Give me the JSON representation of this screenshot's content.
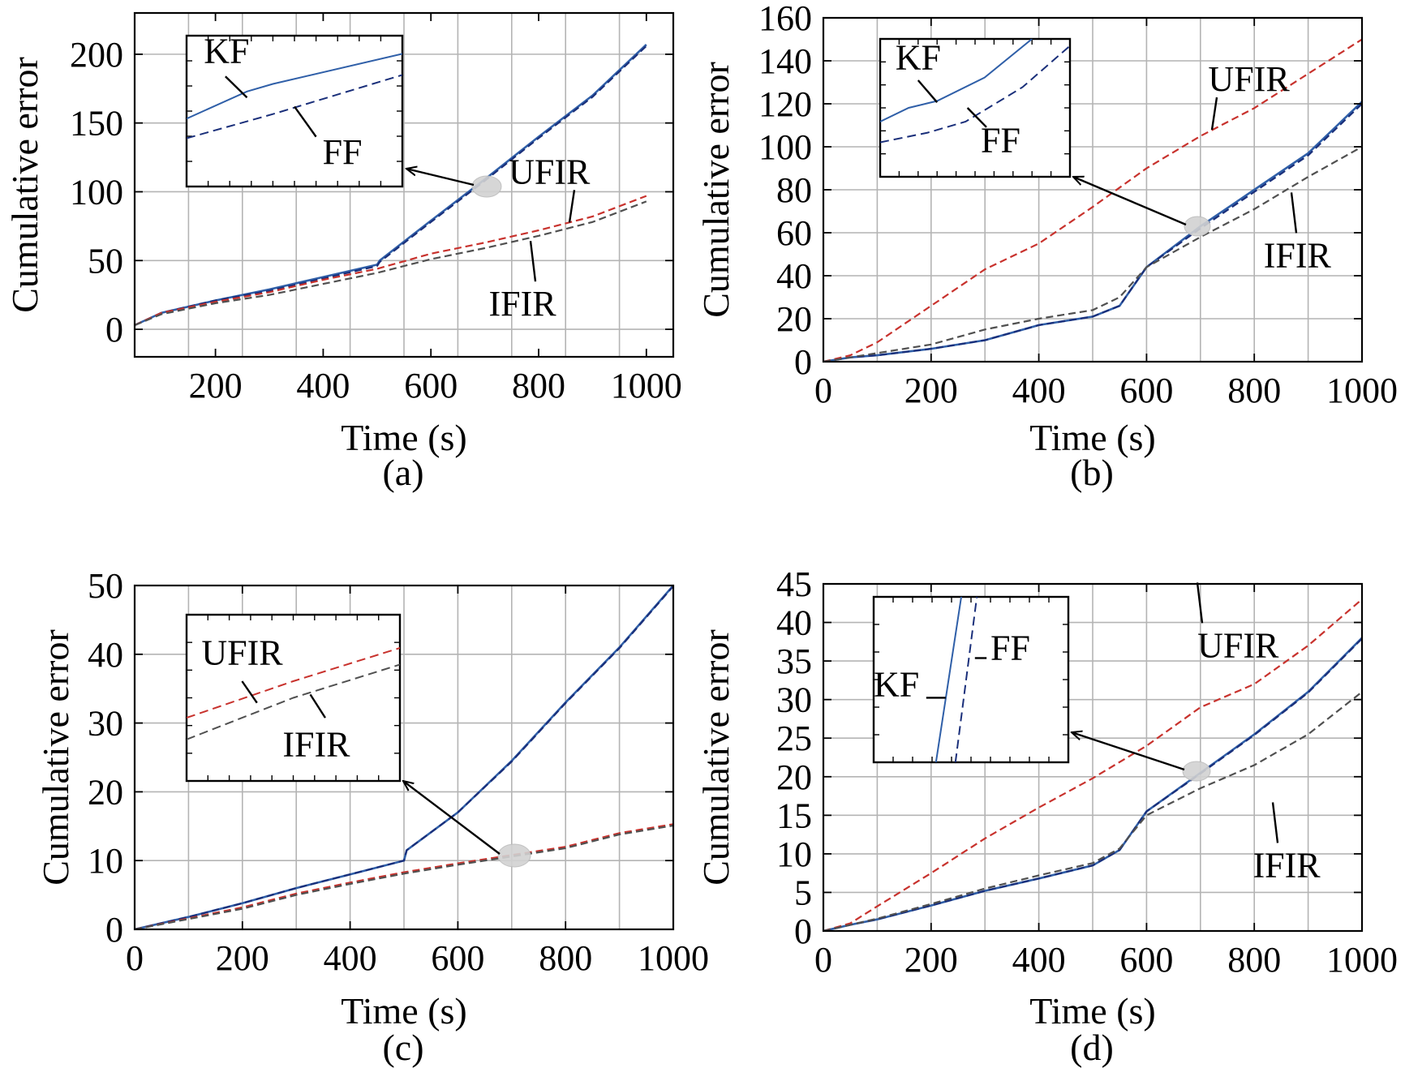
{
  "colors": {
    "KF": "#2f5fa8",
    "FF": "#1a2f7a",
    "UFIR": "#c8322d",
    "IFIR": "#505050",
    "grid": "#b4b4b4",
    "highlight": "#d2d2d2"
  },
  "chart_data": [
    {
      "type": "line",
      "panel_label": "(a)",
      "xlabel": "Time (s)",
      "ylabel": "Cumulative error",
      "xlim": [
        50,
        1050
      ],
      "ylim": [
        -20,
        230
      ],
      "xticks": [
        200,
        400,
        600,
        800,
        1000
      ],
      "yticks": [
        0,
        50,
        100,
        150,
        200
      ],
      "grid": true,
      "series": [
        {
          "key": "KF",
          "style": "solid",
          "x": [
            50,
            100,
            200,
            300,
            400,
            500,
            505,
            600,
            700,
            800,
            900,
            1000
          ],
          "y": [
            3,
            12,
            21,
            29,
            38,
            47,
            50,
            79,
            109,
            140,
            170,
            207
          ]
        },
        {
          "key": "FF",
          "style": "dash",
          "x": [
            50,
            100,
            200,
            300,
            400,
            500,
            505,
            600,
            700,
            800,
            900,
            1000
          ],
          "y": [
            3,
            12,
            21,
            28,
            37,
            46,
            49,
            78,
            108,
            139,
            169,
            206
          ]
        },
        {
          "key": "UFIR",
          "style": "dash",
          "x": [
            50,
            100,
            200,
            300,
            400,
            500,
            600,
            700,
            800,
            900,
            1000
          ],
          "y": [
            3,
            12,
            20,
            27,
            36,
            44,
            55,
            63,
            72,
            82,
            97
          ]
        },
        {
          "key": "IFIR",
          "style": "dash",
          "x": [
            50,
            100,
            200,
            300,
            400,
            500,
            600,
            700,
            800,
            900,
            1000
          ],
          "y": [
            3,
            11,
            19,
            25,
            33,
            41,
            51,
            59,
            68,
            78,
            93
          ]
        }
      ],
      "labels": [
        {
          "text": "UFIR",
          "x": 820,
          "y": 106
        },
        {
          "text": "IFIR",
          "x": 770,
          "y": 10
        }
      ],
      "inset": {
        "labels": [
          {
            "text": "KF"
          },
          {
            "text": "FF"
          }
        ]
      }
    },
    {
      "type": "line",
      "panel_label": "(b)",
      "xlabel": "Time (s)",
      "ylabel": "Cumulative error",
      "xlim": [
        0,
        1000
      ],
      "ylim": [
        0,
        160
      ],
      "xticks": [
        0,
        200,
        400,
        600,
        800,
        1000
      ],
      "yticks": [
        0,
        20,
        40,
        60,
        80,
        100,
        120,
        140,
        160
      ],
      "grid": true,
      "series": [
        {
          "key": "KF",
          "style": "solid",
          "x": [
            0,
            50,
            100,
            200,
            300,
            400,
            500,
            550,
            600,
            700,
            800,
            900,
            1000
          ],
          "y": [
            0,
            2,
            3,
            6,
            10,
            17,
            21,
            26,
            44,
            63,
            80,
            97,
            121
          ]
        },
        {
          "key": "FF",
          "style": "dash",
          "x": [
            0,
            50,
            100,
            200,
            300,
            400,
            500,
            550,
            600,
            700,
            800,
            900,
            1000
          ],
          "y": [
            0,
            2,
            3,
            6,
            10,
            17,
            21,
            26,
            44,
            62,
            79,
            96,
            120
          ]
        },
        {
          "key": "UFIR",
          "style": "dash",
          "x": [
            0,
            50,
            100,
            200,
            300,
            400,
            500,
            600,
            700,
            800,
            900,
            1000
          ],
          "y": [
            0,
            3,
            9,
            26,
            43,
            55,
            72,
            90,
            105,
            118,
            134,
            150
          ]
        },
        {
          "key": "IFIR",
          "style": "dash",
          "x": [
            0,
            50,
            100,
            200,
            300,
            400,
            500,
            550,
            600,
            700,
            800,
            900,
            1000
          ],
          "y": [
            0,
            2,
            4,
            8,
            15,
            20,
            24,
            30,
            44,
            58,
            71,
            86,
            100
          ]
        }
      ],
      "labels": [
        {
          "text": "UFIR",
          "x": 790,
          "y": 126
        },
        {
          "text": "IFIR",
          "x": 880,
          "y": 44
        }
      ],
      "inset": {
        "labels": [
          {
            "text": "KF"
          },
          {
            "text": "FF"
          }
        ]
      }
    },
    {
      "type": "line",
      "panel_label": "(c)",
      "xlabel": "Time (s)",
      "ylabel": "Cumulative error",
      "xlim": [
        0,
        1000
      ],
      "ylim": [
        0,
        50
      ],
      "xticks": [
        0,
        200,
        400,
        600,
        800,
        1000
      ],
      "yticks": [
        0,
        10,
        20,
        30,
        40,
        50
      ],
      "grid": true,
      "series": [
        {
          "key": "KF",
          "style": "solid",
          "x": [
            0,
            100,
            200,
            300,
            400,
            500,
            505,
            600,
            700,
            800,
            900,
            1000
          ],
          "y": [
            0,
            1.8,
            3.8,
            6,
            8,
            10,
            11.5,
            17,
            24.5,
            33,
            41,
            50
          ]
        },
        {
          "key": "FF",
          "style": "dash",
          "x": [
            0,
            100,
            200,
            300,
            400,
            500,
            505,
            600,
            700,
            800,
            900,
            1000
          ],
          "y": [
            0,
            1.8,
            3.8,
            6,
            8,
            10,
            11.5,
            17,
            24.4,
            32.9,
            40.9,
            49.9
          ]
        },
        {
          "key": "UFIR",
          "style": "dash",
          "x": [
            0,
            100,
            200,
            300,
            400,
            500,
            600,
            700,
            800,
            900,
            1000
          ],
          "y": [
            0,
            1.6,
            3.2,
            5.2,
            6.8,
            8.3,
            9.6,
            10.8,
            12,
            14,
            15.3
          ]
        },
        {
          "key": "IFIR",
          "style": "dash",
          "x": [
            0,
            100,
            200,
            300,
            400,
            500,
            600,
            700,
            800,
            900,
            1000
          ],
          "y": [
            0,
            1.5,
            3.0,
            5.0,
            6.6,
            8.1,
            9.4,
            10.6,
            11.8,
            13.8,
            15.1
          ]
        }
      ],
      "labels": [],
      "inset": {
        "labels": [
          {
            "text": "UFIR"
          },
          {
            "text": "IFIR"
          }
        ]
      }
    },
    {
      "type": "line",
      "panel_label": "(d)",
      "xlabel": "Time (s)",
      "ylabel": "Cumulative error",
      "xlim": [
        0,
        1000
      ],
      "ylim": [
        0,
        45
      ],
      "xticks": [
        0,
        200,
        400,
        600,
        800,
        1000
      ],
      "yticks": [
        0,
        5,
        10,
        15,
        20,
        25,
        30,
        35,
        40,
        45
      ],
      "grid": true,
      "series": [
        {
          "key": "KF",
          "style": "solid",
          "x": [
            0,
            50,
            100,
            200,
            300,
            400,
            500,
            550,
            600,
            700,
            800,
            900,
            1000
          ],
          "y": [
            0,
            0.8,
            1.5,
            3.3,
            5.2,
            6.8,
            8.5,
            10.5,
            15.5,
            20.5,
            25.5,
            31,
            38
          ]
        },
        {
          "key": "FF",
          "style": "dash",
          "x": [
            0,
            50,
            100,
            200,
            300,
            400,
            500,
            550,
            600,
            700,
            800,
            900,
            1000
          ],
          "y": [
            0,
            0.8,
            1.5,
            3.3,
            5.2,
            6.8,
            8.5,
            10.5,
            15.5,
            20.4,
            25.4,
            30.9,
            37.9
          ]
        },
        {
          "key": "UFIR",
          "style": "dash",
          "x": [
            0,
            50,
            100,
            200,
            300,
            400,
            500,
            600,
            700,
            800,
            900,
            1000
          ],
          "y": [
            0,
            1,
            3.2,
            7.5,
            12,
            16,
            19.8,
            24,
            29,
            32,
            37,
            43
          ]
        },
        {
          "key": "IFIR",
          "style": "dash",
          "x": [
            0,
            50,
            100,
            200,
            300,
            400,
            500,
            550,
            600,
            700,
            800,
            900,
            1000
          ],
          "y": [
            0,
            0.8,
            1.6,
            3.5,
            5.5,
            7.2,
            8.8,
            10.7,
            15.0,
            18.5,
            21.5,
            25.5,
            31
          ]
        }
      ],
      "labels": [
        {
          "text": "UFIR",
          "x": 770,
          "y": 35.5
        },
        {
          "text": "IFIR",
          "x": 860,
          "y": 7
        }
      ],
      "inset": {
        "labels": [
          {
            "text": "KF"
          },
          {
            "text": "FF"
          }
        ]
      }
    }
  ]
}
